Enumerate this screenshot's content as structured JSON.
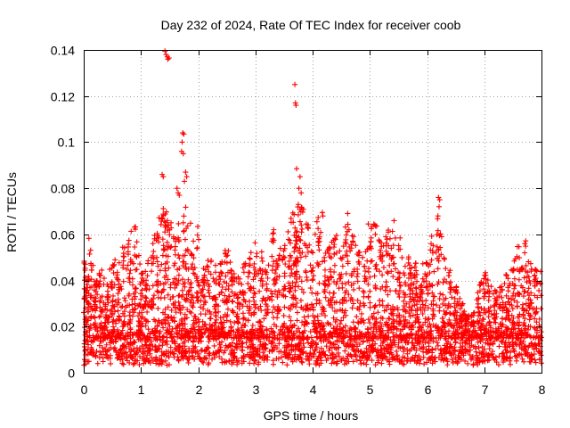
{
  "chart_data": {
    "type": "scatter",
    "title": "Day 232 of 2024, Rate Of TEC Index for receiver coob",
    "xlabel": "GPS time / hours",
    "ylabel": "ROTI / TECUs",
    "xlim": [
      0,
      8
    ],
    "ylim": [
      0,
      0.14
    ],
    "xticks": [
      0,
      1,
      2,
      3,
      4,
      5,
      6,
      7,
      8
    ],
    "xtick_labels": [
      "0",
      "1",
      "2",
      "3",
      "4",
      "5",
      "6",
      "7",
      "8"
    ],
    "yticks": [
      0,
      0.02,
      0.04,
      0.06,
      0.08,
      0.1,
      0.12,
      0.14
    ],
    "ytick_labels": [
      "0",
      "0.02",
      "0.04",
      "0.06",
      "0.08",
      "0.1",
      "0.12",
      "0.14"
    ],
    "grid": true,
    "marker": "+",
    "marker_color": "#ff0000",
    "density_note": "Dense band of points between about 0.005 and 0.02 across 0-8 h; sparse upper envelope listed in envelope.",
    "band": {
      "low": 0.006,
      "high": 0.02,
      "count": 1600
    },
    "envelope": [
      [
        0.0,
        0.054
      ],
      [
        0.05,
        0.04
      ],
      [
        0.1,
        0.06
      ],
      [
        0.15,
        0.05
      ],
      [
        0.2,
        0.042
      ],
      [
        0.3,
        0.045
      ],
      [
        0.4,
        0.04
      ],
      [
        0.5,
        0.05
      ],
      [
        0.6,
        0.048
      ],
      [
        0.7,
        0.055
      ],
      [
        0.8,
        0.062
      ],
      [
        0.9,
        0.066
      ],
      [
        1.0,
        0.05
      ],
      [
        1.1,
        0.046
      ],
      [
        1.2,
        0.058
      ],
      [
        1.3,
        0.065
      ],
      [
        1.38,
        0.086
      ],
      [
        1.42,
        0.14
      ],
      [
        1.45,
        0.137
      ],
      [
        1.5,
        0.07
      ],
      [
        1.6,
        0.06
      ],
      [
        1.68,
        0.08
      ],
      [
        1.75,
        0.104
      ],
      [
        1.8,
        0.085
      ],
      [
        1.9,
        0.064
      ],
      [
        2.0,
        0.068
      ],
      [
        2.1,
        0.045
      ],
      [
        2.2,
        0.05
      ],
      [
        2.3,
        0.048
      ],
      [
        2.4,
        0.05
      ],
      [
        2.5,
        0.054
      ],
      [
        2.6,
        0.045
      ],
      [
        2.7,
        0.042
      ],
      [
        2.8,
        0.048
      ],
      [
        2.9,
        0.05
      ],
      [
        3.0,
        0.06
      ],
      [
        3.1,
        0.055
      ],
      [
        3.2,
        0.05
      ],
      [
        3.3,
        0.063
      ],
      [
        3.4,
        0.052
      ],
      [
        3.5,
        0.058
      ],
      [
        3.6,
        0.063
      ],
      [
        3.68,
        0.125
      ],
      [
        3.7,
        0.117
      ],
      [
        3.72,
        0.088
      ],
      [
        3.8,
        0.08
      ],
      [
        3.9,
        0.065
      ],
      [
        4.0,
        0.055
      ],
      [
        4.1,
        0.07
      ],
      [
        4.2,
        0.058
      ],
      [
        4.3,
        0.062
      ],
      [
        4.4,
        0.06
      ],
      [
        4.5,
        0.054
      ],
      [
        4.6,
        0.07
      ],
      [
        4.7,
        0.06
      ],
      [
        4.8,
        0.055
      ],
      [
        4.9,
        0.05
      ],
      [
        5.0,
        0.067
      ],
      [
        5.1,
        0.065
      ],
      [
        5.2,
        0.06
      ],
      [
        5.3,
        0.062
      ],
      [
        5.4,
        0.067
      ],
      [
        5.5,
        0.066
      ],
      [
        5.6,
        0.05
      ],
      [
        5.7,
        0.055
      ],
      [
        5.8,
        0.048
      ],
      [
        5.9,
        0.05
      ],
      [
        6.0,
        0.05
      ],
      [
        6.1,
        0.06
      ],
      [
        6.2,
        0.076
      ],
      [
        6.3,
        0.05
      ],
      [
        6.4,
        0.045
      ],
      [
        6.5,
        0.038
      ],
      [
        6.6,
        0.03
      ],
      [
        6.7,
        0.025
      ],
      [
        6.8,
        0.026
      ],
      [
        6.9,
        0.04
      ],
      [
        7.0,
        0.044
      ],
      [
        7.1,
        0.038
      ],
      [
        7.2,
        0.036
      ],
      [
        7.3,
        0.04
      ],
      [
        7.4,
        0.045
      ],
      [
        7.5,
        0.05
      ],
      [
        7.6,
        0.055
      ],
      [
        7.7,
        0.058
      ],
      [
        7.8,
        0.05
      ],
      [
        7.9,
        0.045
      ]
    ],
    "outliers": [
      [
        1.42,
        0.1395
      ],
      [
        1.44,
        0.138
      ],
      [
        1.46,
        0.137
      ],
      [
        1.47,
        0.136
      ],
      [
        1.49,
        0.1365
      ],
      [
        1.73,
        0.104
      ],
      [
        1.75,
        0.1035
      ],
      [
        1.72,
        0.1
      ],
      [
        1.71,
        0.096
      ],
      [
        1.74,
        0.095
      ],
      [
        1.37,
        0.086
      ],
      [
        1.39,
        0.085
      ],
      [
        1.78,
        0.087
      ],
      [
        1.8,
        0.085
      ],
      [
        1.76,
        0.083
      ],
      [
        1.63,
        0.08
      ],
      [
        1.65,
        0.078
      ],
      [
        1.67,
        0.077
      ],
      [
        3.69,
        0.125
      ],
      [
        3.7,
        0.117
      ],
      [
        3.71,
        0.116
      ],
      [
        3.72,
        0.0885
      ],
      [
        3.78,
        0.085
      ],
      [
        3.76,
        0.08
      ],
      [
        3.8,
        0.078
      ],
      [
        3.75,
        0.073
      ],
      [
        6.2,
        0.076
      ],
      [
        6.22,
        0.075
      ],
      [
        6.21,
        0.072
      ],
      [
        6.19,
        0.068
      ],
      [
        4.17,
        0.0695
      ],
      [
        4.18,
        0.068
      ]
    ]
  }
}
